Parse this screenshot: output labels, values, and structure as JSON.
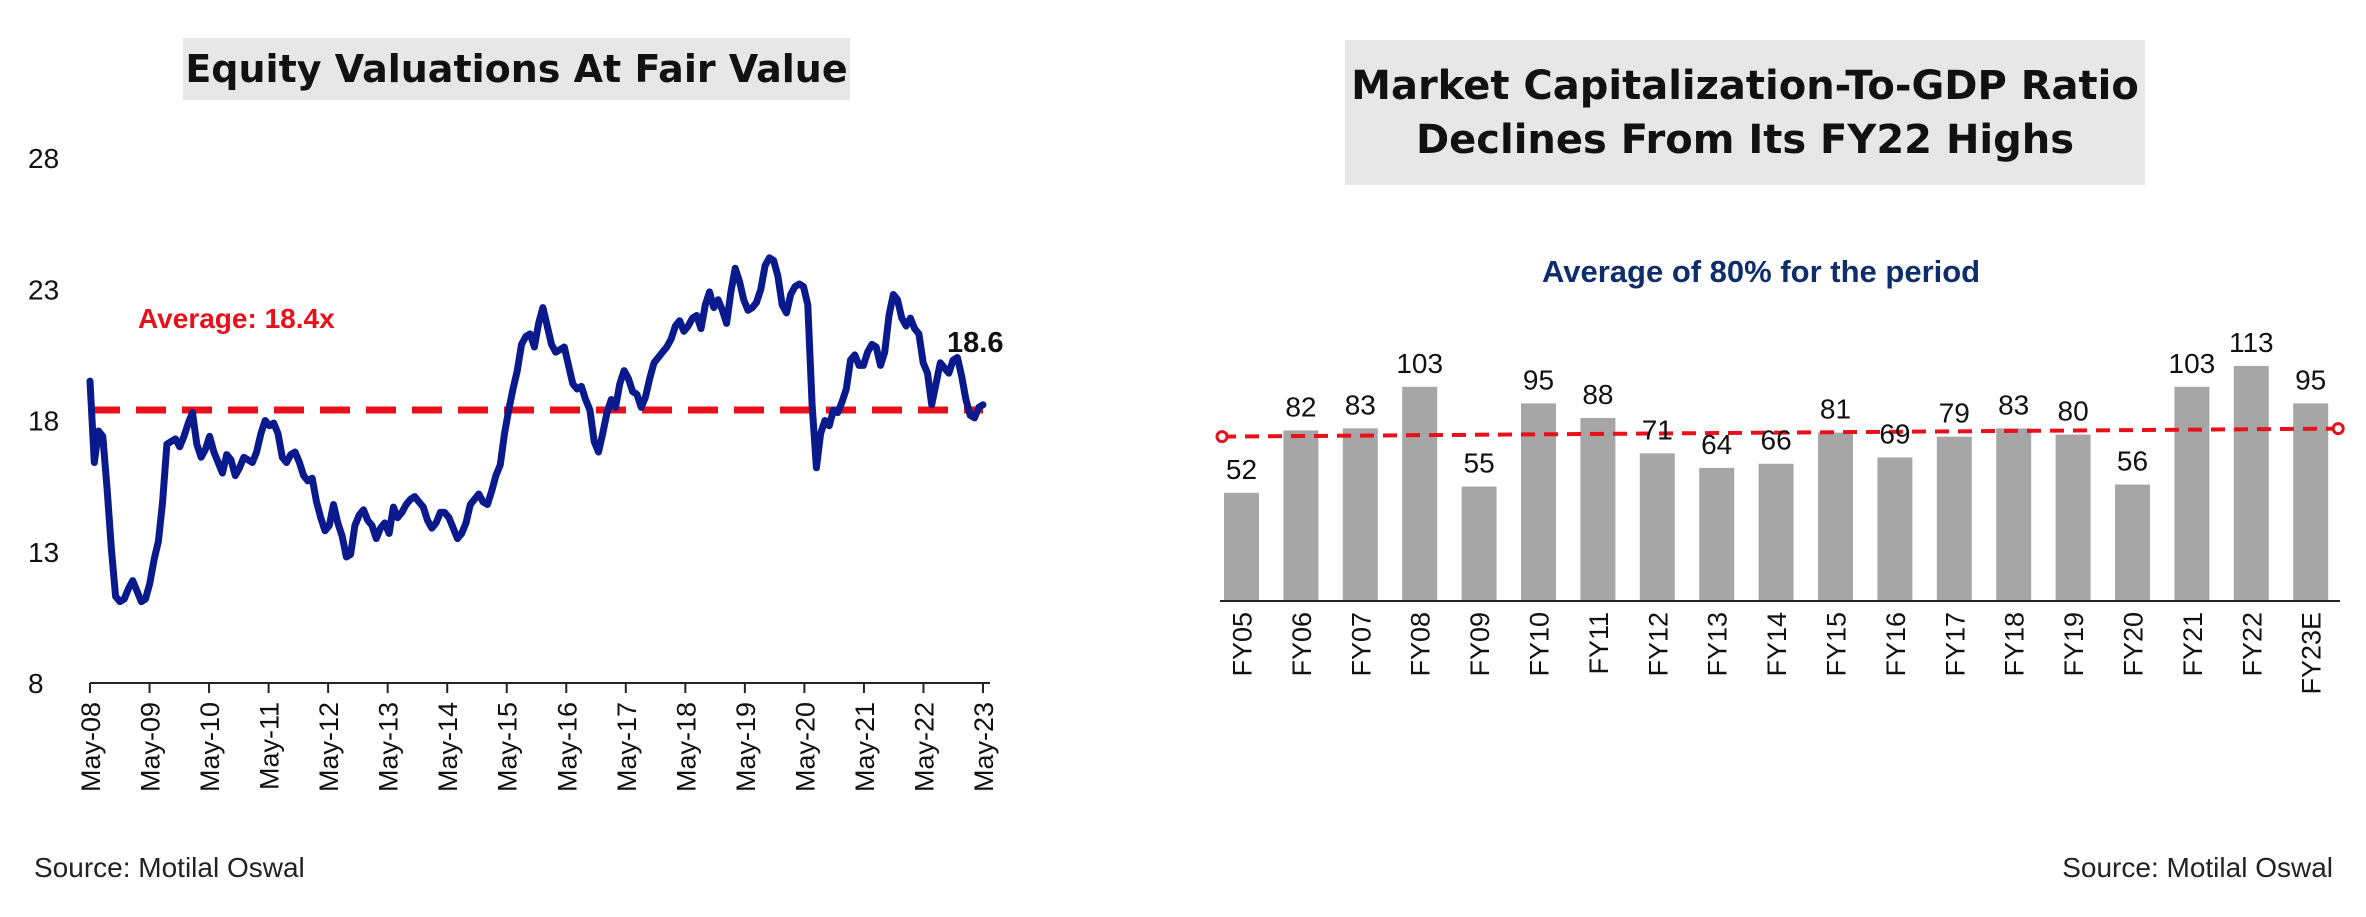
{
  "left": {
    "title": "Equity Valuations At Fair Value",
    "source": "Source: Motilal Oswal",
    "average_label": "Average: 18.4x",
    "end_label": "18.6",
    "colors": {
      "line": "#0a1a8c",
      "average": "#e8101a"
    }
  },
  "right": {
    "title_line1": "Market Capitalization-To-GDP Ratio",
    "title_line2": "Declines From Its FY22 Highs",
    "average_label": "Average of 80% for the period",
    "source": "Source: Motilal Oswal",
    "colors": {
      "bar": "#a6a6a6",
      "average": "#e8101a",
      "average_label": "#0d2d6b"
    }
  },
  "chart_data": [
    {
      "type": "line",
      "title": "Equity Valuations At Fair Value",
      "ylim": [
        8,
        28
      ],
      "y_ticks": [
        8,
        13,
        18,
        23,
        28
      ],
      "x_ticks": [
        "May-08",
        "May-09",
        "May-10",
        "May-11",
        "May-12",
        "May-13",
        "May-14",
        "May-15",
        "May-16",
        "May-17",
        "May-18",
        "May-19",
        "May-20",
        "May-21",
        "May-22",
        "May-23"
      ],
      "average": 18.4,
      "grid": false,
      "series": [
        {
          "values": [
            19.5,
            16.4,
            17.6,
            17.4,
            15.4,
            13.1,
            11.3,
            11.1,
            11.2,
            11.6,
            11.9,
            11.5,
            11.1,
            11.2,
            11.8,
            12.7,
            13.4,
            14.9,
            17.1,
            17.2,
            17.3,
            17.0,
            17.4,
            17.9,
            18.3,
            17.1,
            16.6,
            16.9,
            17.4,
            16.8,
            16.4,
            16.0,
            16.7,
            16.5,
            15.9,
            16.2,
            16.6,
            16.5,
            16.4,
            16.8,
            17.5,
            18.0,
            17.8,
            17.9,
            17.5,
            16.6,
            16.4,
            16.7,
            16.8,
            16.4,
            15.9,
            15.7,
            15.8,
            14.9,
            14.3,
            13.8,
            14.0,
            14.8,
            14.1,
            13.6,
            12.8,
            12.9,
            14.0,
            14.4,
            14.6,
            14.2,
            14.0,
            13.5,
            13.9,
            14.1,
            13.7,
            14.7,
            14.3,
            14.5,
            14.8,
            15.0,
            15.1,
            14.9,
            14.7,
            14.2,
            13.9,
            14.1,
            14.5,
            14.5,
            14.3,
            13.9,
            13.5,
            13.7,
            14.1,
            14.8,
            15.0,
            15.2,
            14.9,
            14.8,
            15.3,
            15.9,
            16.3,
            17.5,
            18.4,
            19.2,
            19.9,
            20.9,
            21.2,
            21.3,
            20.8,
            21.7,
            22.3,
            21.6,
            20.9,
            20.6,
            20.7,
            20.8,
            20.1,
            19.4,
            19.2,
            19.3,
            18.8,
            18.4,
            17.2,
            16.8,
            17.5,
            18.3,
            18.8,
            18.5,
            19.4,
            19.9,
            19.6,
            19.1,
            19.0,
            18.5,
            18.9,
            19.6,
            20.2,
            20.4,
            20.6,
            20.8,
            21.1,
            21.6,
            21.8,
            21.4,
            21.6,
            21.9,
            22.0,
            21.5,
            22.4,
            22.9,
            22.3,
            22.6,
            22.2,
            21.7,
            22.9,
            23.8,
            23.3,
            22.6,
            22.2,
            22.3,
            22.5,
            23.0,
            23.9,
            24.2,
            24.1,
            23.5,
            22.4,
            22.1,
            22.8,
            23.1,
            23.2,
            23.1,
            22.4,
            18.6,
            16.2,
            17.5,
            18.0,
            17.8,
            18.4,
            18.3,
            18.7,
            19.2,
            20.3,
            20.5,
            20.1,
            20.1,
            20.6,
            20.9,
            20.8,
            20.1,
            20.6,
            22.0,
            22.8,
            22.6,
            21.9,
            21.6,
            21.9,
            21.5,
            21.3,
            20.2,
            19.8,
            18.6,
            19.4,
            20.2,
            20.0,
            19.8,
            20.3,
            20.4,
            19.7,
            18.8,
            18.2,
            18.1,
            18.5,
            18.6
          ]
        }
      ]
    },
    {
      "type": "bar",
      "title": "Market Capitalization-To-GDP Ratio Declines From Its FY22 Highs",
      "categories": [
        "FY05",
        "FY06",
        "FY07",
        "FY08",
        "FY09",
        "FY10",
        "FY11",
        "FY12",
        "FY13",
        "FY14",
        "FY15",
        "FY16",
        "FY17",
        "FY18",
        "FY19",
        "FY20",
        "FY21",
        "FY22",
        "FY23E"
      ],
      "values": [
        52,
        82,
        83,
        103,
        55,
        95,
        88,
        71,
        64,
        66,
        81,
        69,
        79,
        83,
        80,
        56,
        103,
        113,
        95
      ],
      "average": 80,
      "grid": false
    }
  ]
}
